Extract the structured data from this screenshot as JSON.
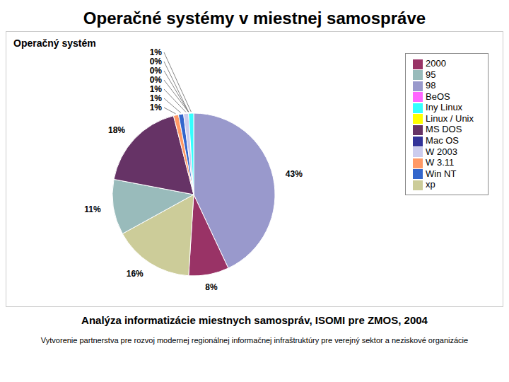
{
  "chart_data": {
    "type": "pie",
    "title": "Operačné systémy v miestnej samospráve",
    "subtitle": "Analýza informatizácie miestnych samospráv, ISOMI pre ZMOS, 2004",
    "annotations": [
      "Operačný systém",
      "Vytvorenie partnerstva pre rozvoj modernej regionálnej informačnej infraštruktúry pre verejný sektor a neziskové organizácie"
    ],
    "categories": [
      "98",
      "2000",
      "xp",
      "95",
      "MS DOS",
      "W 3.11",
      "Win NT",
      "W 2003",
      "Mac OS",
      "BeOS",
      "Linux / Unix",
      "Iny Linux"
    ],
    "values": [
      43,
      8,
      16,
      11,
      18,
      1,
      1,
      1,
      0,
      0,
      0,
      1
    ],
    "value_labels": [
      "43%",
      "8%",
      "16%",
      "11%",
      "18%",
      "1%",
      "1%",
      "1%",
      "0%",
      "0%",
      "0%",
      "1%"
    ],
    "colors": [
      "#9999CC",
      "#993366",
      "#CCCC99",
      "#99BBBB",
      "#663366",
      "#FF9966",
      "#3366CC",
      "#CCCCEE",
      "#333399",
      "#FF66FF",
      "#FFFF00",
      "#33FFFF"
    ],
    "data_labels": true,
    "legend": "upper right"
  }
}
